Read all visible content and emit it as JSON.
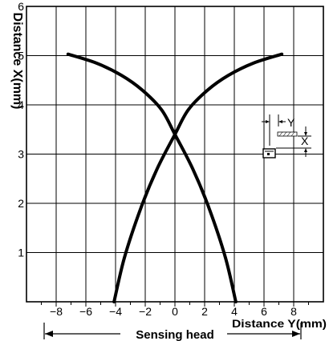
{
  "chart_data": {
    "type": "line",
    "ylabel": "Distance X(mm)",
    "xlabel": "Distance Y(mm)",
    "bottom_label": "Sensing head",
    "xlim": [
      -10,
      10
    ],
    "ylim": [
      0,
      6
    ],
    "x_ticks": [
      "−8",
      "−6",
      "−4",
      "−2",
      "0",
      "2",
      "4",
      "6",
      "8"
    ],
    "y_ticks": [
      "1",
      "2",
      "3",
      "4",
      "5",
      "6"
    ],
    "grid": true,
    "inset_labels": [
      "Y",
      "X"
    ],
    "series": [
      {
        "x": [
          -4.1,
          -3.4,
          -2.3,
          -1.2,
          0,
          0.9,
          2.2,
          3.6,
          5.3,
          7.2
        ],
        "y": [
          0,
          0.9,
          1.9,
          2.7,
          3.4,
          3.9,
          4.3,
          4.6,
          4.85,
          5.03
        ]
      },
      {
        "x": [
          4.1,
          3.4,
          2.3,
          1.2,
          0,
          -0.9,
          -2.2,
          -3.6,
          -5.3,
          -7.2
        ],
        "y": [
          0,
          0.9,
          1.9,
          2.7,
          3.4,
          3.9,
          4.3,
          4.6,
          4.85,
          5.03
        ]
      }
    ]
  }
}
